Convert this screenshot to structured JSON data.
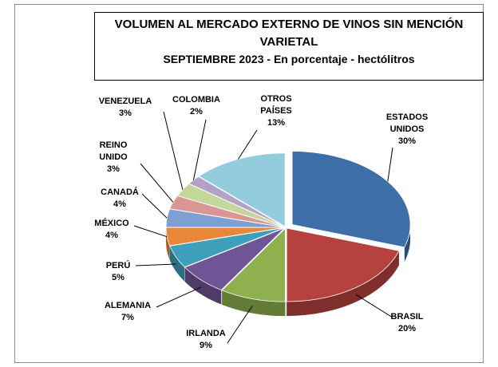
{
  "chart_data": {
    "type": "pie",
    "title": "VOLUMEN AL MERCADO EXTERNO DE VINOS SIN MENCIÓN VARIETAL",
    "subtitle": "SEPTIEMBRE 2023 - En porcentaje - hectólitros",
    "categories": [
      "ESTADOS UNIDOS",
      "BRASIL",
      "IRLANDA",
      "ALEMANIA",
      "PERÚ",
      "MÉXICO",
      "CANADÁ",
      "REINO UNIDO",
      "VENEZUELA",
      "COLOMBIA",
      "OTROS PAÍSES"
    ],
    "values": [
      30,
      20,
      9,
      7,
      5,
      4,
      4,
      3,
      3,
      2,
      13
    ],
    "value_labels": [
      "30%",
      "20%",
      "9%",
      "7%",
      "5%",
      "4%",
      "4%",
      "3%",
      "3%",
      "2%",
      "13%"
    ],
    "colors": [
      "#3f6fa9",
      "#b5423f",
      "#8fb04e",
      "#6f5595",
      "#3fa0bb",
      "#e8863a",
      "#7e9fd1",
      "#d99694",
      "#c3d69b",
      "#b3a2c7",
      "#93cddd"
    ]
  }
}
